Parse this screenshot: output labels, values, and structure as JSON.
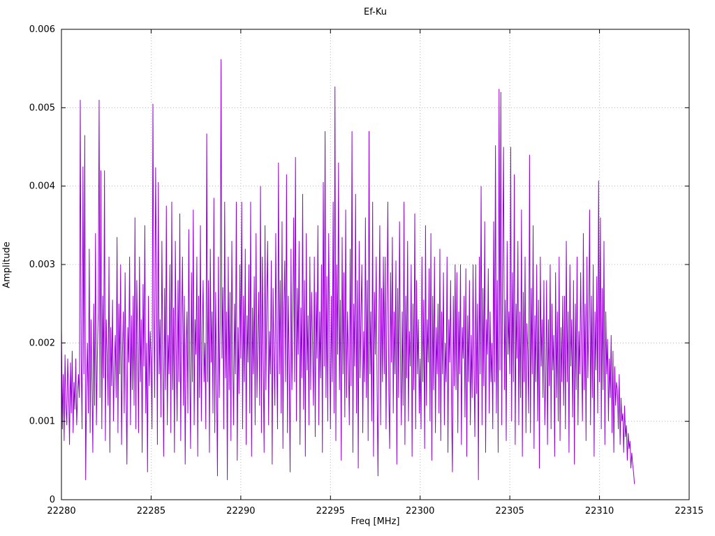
{
  "chart_data": {
    "type": "line",
    "title": "Ef-Ku",
    "xlabel": "Freq [MHz]",
    "ylabel": "Amplitude",
    "xlim": [
      22280,
      22315
    ],
    "ylim": [
      0,
      0.006
    ],
    "x_ticks": [
      22280,
      22285,
      22290,
      22295,
      22300,
      22305,
      22310,
      22315
    ],
    "x_tick_labels": [
      "22280",
      "22285",
      "22290",
      "22295",
      "22300",
      "22305",
      "22310",
      "22315"
    ],
    "y_ticks": [
      0,
      0.001,
      0.002,
      0.003,
      0.004,
      0.005,
      0.006
    ],
    "y_tick_labels": [
      "0",
      "0.001",
      "0.002",
      "0.003",
      "0.004",
      "0.005",
      "0.006"
    ],
    "grid": true,
    "grid_style": "dotted",
    "legend_position": "none",
    "line_color": "#9400d3",
    "border_color": "#000000",
    "grid_color": "#b8b8b8",
    "x_start": 22280,
    "x_step": 0.05,
    "y_scale": 1e-05,
    "values": [
      220,
      90,
      160,
      75,
      185,
      120,
      95,
      180,
      140,
      70,
      175,
      110,
      190,
      85,
      150,
      115,
      180,
      95,
      135,
      160,
      130,
      510,
      180,
      90,
      425,
      160,
      465,
      25,
      140,
      200,
      110,
      320,
      85,
      230,
      150,
      60,
      250,
      120,
      340,
      95,
      180,
      240,
      510,
      130,
      420,
      90,
      260,
      155,
      420,
      75,
      230,
      185,
      120,
      310,
      60,
      220,
      145,
      255,
      100,
      170,
      210,
      130,
      335,
      85,
      250,
      160,
      300,
      70,
      185,
      240,
      110,
      290,
      150,
      45,
      220,
      175,
      310,
      95,
      235,
      140,
      260,
      120,
      360,
      90,
      280,
      195,
      85,
      310,
      150,
      230,
      60,
      275,
      170,
      350,
      110,
      200,
      35,
      260,
      145,
      215,
      180,
      90,
      505,
      240,
      130,
      424,
      295,
      70,
      405,
      160,
      230,
      105,
      330,
      185,
      55,
      270,
      140,
      375,
      95,
      210,
      160,
      300,
      85,
      380,
      140,
      245,
      60,
      330,
      190,
      100,
      280,
      150,
      365,
      75,
      225,
      310,
      120,
      260,
      45,
      195,
      240,
      110,
      345,
      170,
      65,
      290,
      150,
      370,
      95,
      230,
      185,
      310,
      55,
      260,
      130,
      350,
      100,
      215,
      280,
      150,
      200,
      90,
      467,
      150,
      280,
      60,
      320,
      175,
      240,
      110,
      385,
      85,
      265,
      150,
      30,
      310,
      130,
      225,
      562,
      180,
      271,
      90,
      380,
      155,
      240,
      25,
      310,
      140,
      265,
      75,
      330,
      180,
      95,
      250,
      160,
      380,
      50,
      220,
      135,
      300,
      180,
      380,
      90,
      260,
      150,
      320,
      70,
      235,
      175,
      300,
      110,
      380,
      55,
      245,
      160,
      285,
      95,
      340,
      130,
      210,
      265,
      120,
      400,
      85,
      310,
      180,
      60,
      350,
      140,
      255,
      330,
      95,
      215,
      160,
      305,
      45,
      270,
      185,
      120,
      340,
      190,
      90,
      430,
      160,
      280,
      110,
      355,
      65,
      240,
      305,
      150,
      415,
      85,
      260,
      175,
      35,
      320,
      140,
      230,
      360,
      150,
      437,
      100,
      270,
      185,
      330,
      70,
      245,
      155,
      390,
      115,
      280,
      55,
      340,
      165,
      235,
      95,
      310,
      140,
      265,
      200,
      120,
      310,
      80,
      265,
      180,
      350,
      95,
      240,
      155,
      300,
      60,
      405,
      170,
      470,
      130,
      285,
      100,
      340,
      215,
      90,
      260,
      150,
      380,
      110,
      527,
      75,
      300,
      185,
      430,
      140,
      255,
      50,
      335,
      160,
      290,
      105,
      370,
      130,
      240,
      180,
      95,
      320,
      145,
      470,
      60,
      250,
      170,
      390,
      110,
      280,
      40,
      330,
      155,
      235,
      300,
      85,
      215,
      150,
      360,
      130,
      280,
      75,
      470,
      160,
      240,
      100,
      380,
      55,
      265,
      185,
      310,
      140,
      30,
      225,
      350,
      95,
      270,
      150,
      310,
      160,
      310,
      90,
      250,
      380,
      140,
      65,
      290,
      175,
      335,
      110,
      240,
      160,
      305,
      45,
      270,
      130,
      355,
      185,
      95,
      240,
      120,
      380,
      70,
      260,
      155,
      330,
      100,
      215,
      170,
      300,
      55,
      250,
      140,
      365,
      90,
      280,
      160,
      230,
      110,
      180,
      90,
      310,
      150,
      255,
      65,
      350,
      120,
      230,
      175,
      295,
      100,
      340,
      50,
      260,
      140,
      310,
      85,
      220,
      160,
      250,
      110,
      320,
      75,
      240,
      160,
      290,
      95,
      200,
      150,
      310,
      60,
      230,
      175,
      280,
      120,
      35,
      260,
      145,
      300,
      140,
      290,
      85,
      240,
      160,
      300,
      70,
      220,
      180,
      260,
      105,
      295,
      55,
      235,
      150,
      280,
      95,
      210,
      130,
      300,
      170,
      80,
      300,
      135,
      250,
      25,
      310,
      160,
      400,
      95,
      270,
      145,
      355,
      60,
      230,
      185,
      295,
      110,
      240,
      150,
      200,
      90,
      355,
      150,
      452,
      110,
      280,
      60,
      524,
      165,
      520,
      95,
      300,
      450,
      140,
      255,
      75,
      330,
      185,
      240,
      160,
      450,
      100,
      290,
      150,
      415,
      70,
      250,
      180,
      330,
      95,
      240,
      130,
      370,
      55,
      265,
      150,
      310,
      85,
      225,
      190,
      110,
      440,
      85,
      270,
      160,
      350,
      65,
      235,
      150,
      300,
      100,
      255,
      40,
      310,
      170,
      230,
      130,
      280,
      95,
      150,
      280,
      70,
      230,
      145,
      300,
      90,
      250,
      165,
      210,
      55,
      290,
      130,
      240,
      100,
      310,
      75,
      220,
      150,
      260,
      120,
      260,
      90,
      330,
      150,
      240,
      60,
      300,
      170,
      230,
      105,
      280,
      45,
      250,
      140,
      310,
      95,
      215,
      160,
      290,
      180,
      100,
      340,
      140,
      250,
      75,
      310,
      155,
      230,
      370,
      95,
      260,
      130,
      300,
      55,
      240,
      165,
      285,
      110,
      407,
      150,
      360,
      90,
      270,
      140,
      330,
      70,
      240,
      160,
      205,
      100,
      180,
      130,
      210,
      85,
      190,
      60,
      170,
      120,
      150,
      140,
      90,
      160,
      70,
      130,
      100,
      110,
      60,
      120,
      80,
      95,
      50,
      85,
      65,
      75,
      40,
      60,
      45,
      35,
      20
    ]
  }
}
